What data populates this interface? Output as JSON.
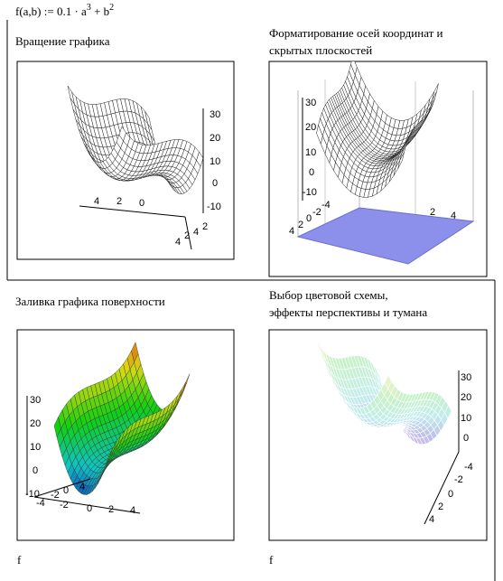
{
  "formula": {
    "lhs": "f(a,b) := 0.1 · a",
    "exp1": "3",
    "mid": " + b",
    "exp2": "2"
  },
  "panels": [
    {
      "caption": [
        "Вращение графика"
      ],
      "ticks": [
        "30",
        "20",
        "10",
        "0",
        "-10",
        "4",
        "2",
        "0",
        "4",
        "2",
        "4",
        "2"
      ]
    },
    {
      "caption": [
        "Форматирование осей координат и",
        "скрытых плоскостей"
      ],
      "ticks": [
        "30",
        "20",
        "10",
        "0",
        "-10",
        "4",
        "2",
        "0",
        "-2",
        "-4",
        "2",
        "4"
      ]
    },
    {
      "caption": [
        "Заливка графика поверхности"
      ],
      "ticks": [
        "30",
        "20",
        "10",
        "0",
        "-10",
        "-4",
        "-2",
        "0",
        "2",
        "4",
        "-2",
        "0",
        "4"
      ]
    },
    {
      "caption": [
        "Выбор цветовой схемы,",
        "эффекты перспективы и тумана"
      ],
      "ticks": [
        "30",
        "20",
        "10",
        "0",
        "-4",
        "-2",
        "0",
        "2",
        "4"
      ]
    }
  ],
  "footers": [
    "f",
    "f"
  ]
}
